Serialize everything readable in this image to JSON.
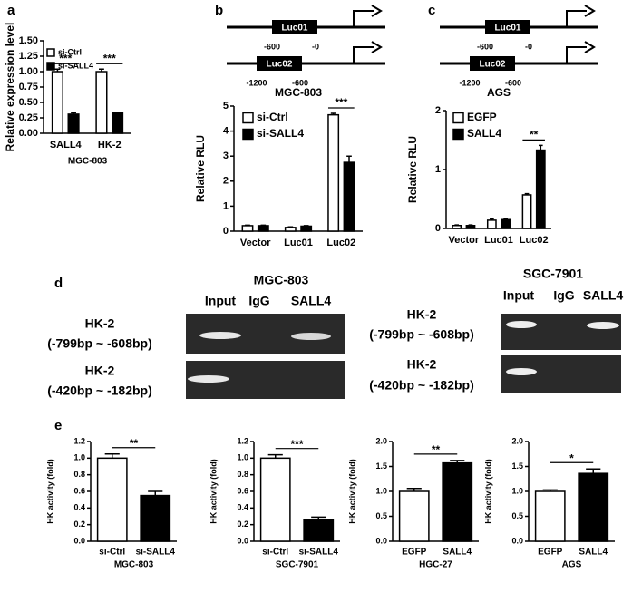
{
  "panel_labels": [
    "a",
    "b",
    "c",
    "d",
    "e"
  ],
  "promoters": [
    {
      "constructs": [
        {
          "label": "Luc01",
          "start": "-600",
          "end": "-0"
        },
        {
          "label": "Luc02",
          "start": "-1200",
          "end": "-600"
        }
      ]
    },
    {
      "constructs": [
        {
          "label": "Luc01",
          "start": "-600",
          "end": "-0"
        },
        {
          "label": "Luc02",
          "start": "-1200",
          "end": "-600"
        }
      ]
    }
  ],
  "gels": [
    {
      "title": "MGC-803",
      "lanes": [
        "Input",
        "IgG",
        "SALL4"
      ],
      "rows": [
        [
          "HK-2",
          "(-799bp ~ -608bp)"
        ],
        [
          "HK-2",
          "(-420bp ~ -182bp)"
        ]
      ]
    },
    {
      "title": "SGC-7901",
      "lanes": [
        "Input",
        "IgG",
        "SALL4"
      ],
      "rows": [
        [
          "HK-2",
          "(-799bp ~ -608bp)"
        ],
        [
          "HK-2",
          "(-420bp ~ -182bp)"
        ]
      ]
    }
  ],
  "chart_data": [
    {
      "type": "bar",
      "ylabel": "Relative expression level",
      "xlabel": "MGC-803",
      "categories": [
        "SALL4",
        "HK-2"
      ],
      "series": [
        {
          "name": "si-Ctrl",
          "color": "#ffffff",
          "values": [
            1.0,
            1.0
          ],
          "errors": [
            0.04,
            0.04
          ]
        },
        {
          "name": "si-SALL4",
          "color": "#000000",
          "values": [
            0.31,
            0.33
          ],
          "errors": [
            0.02,
            0.01
          ]
        }
      ],
      "ylim": [
        0,
        1.5
      ],
      "yticks": [
        {
          "value": 0,
          "label": "0.00"
        },
        0.25,
        {
          "value": 0.5,
          "label": "0.50"
        },
        0.75,
        {
          "value": 1,
          "label": "1.00"
        },
        1.25,
        {
          "value": 1.5,
          "label": "1.50"
        }
      ],
      "annotations": [
        {
          "text": "***",
          "category": 0
        },
        {
          "text": "***",
          "category": 1
        }
      ]
    },
    {
      "type": "bar",
      "title": "MGC-803",
      "ylabel": "Relative RLU",
      "categories": [
        "Vector",
        "Luc01",
        "Luc02"
      ],
      "series": [
        {
          "name": "si-Ctrl",
          "color": "#ffffff",
          "values": [
            0.22,
            0.15,
            4.65
          ],
          "errors": [
            0.02,
            0.02,
            0.06
          ]
        },
        {
          "name": "si-SALL4",
          "color": "#000000",
          "values": [
            0.22,
            0.2,
            2.75
          ],
          "errors": [
            0.02,
            0.02,
            0.25
          ]
        }
      ],
      "ylim": [
        0,
        5
      ],
      "yticks": [
        0,
        1,
        2,
        3,
        4,
        5
      ],
      "annotations": [
        {
          "text": "***",
          "category": 2
        }
      ]
    },
    {
      "type": "bar",
      "title": "AGS",
      "ylabel": "Relative RLU",
      "categories": [
        "Vector",
        "Luc01",
        "Luc02"
      ],
      "series": [
        {
          "name": "EGFP",
          "color": "#ffffff",
          "values": [
            0.05,
            0.14,
            0.57
          ],
          "errors": [
            0.01,
            0.02,
            0.02
          ]
        },
        {
          "name": "SALL4",
          "color": "#000000",
          "values": [
            0.05,
            0.15,
            1.33
          ],
          "errors": [
            0.01,
            0.02,
            0.08
          ]
        }
      ],
      "ylim": [
        0,
        2
      ],
      "yticks": [
        0,
        1,
        2
      ],
      "annotations": [
        {
          "text": "**",
          "category": 2
        }
      ]
    },
    {
      "type": "bar",
      "ylabel": "HK activity (fold)",
      "xlabel": "MGC-803",
      "categories": [
        "si-Ctrl",
        "si-SALL4"
      ],
      "values": [
        1.0,
        0.55
      ],
      "errors": [
        0.05,
        0.05
      ],
      "colors": [
        "#ffffff",
        "#000000"
      ],
      "ylim": [
        0,
        1.2
      ],
      "yticks": [
        {
          "value": 0,
          "label": "0.0"
        },
        0.2,
        0.4,
        0.6,
        0.8,
        {
          "value": 1,
          "label": "1.0"
        },
        1.2
      ],
      "annotation": "**"
    },
    {
      "type": "bar",
      "ylabel": "HK activity (fold)",
      "xlabel": "SGC-7901",
      "categories": [
        "si-Ctrl",
        "si-SALL4"
      ],
      "values": [
        1.0,
        0.26
      ],
      "errors": [
        0.04,
        0.03
      ],
      "colors": [
        "#ffffff",
        "#000000"
      ],
      "ylim": [
        0,
        1.2
      ],
      "yticks": [
        {
          "value": 0,
          "label": "0.0"
        },
        0.2,
        0.4,
        0.6,
        0.8,
        {
          "value": 1,
          "label": "1.0"
        },
        1.2
      ],
      "annotation": "***"
    },
    {
      "type": "bar",
      "ylabel": "HK activity (fold)",
      "xlabel": "HGC-27",
      "categories": [
        "EGFP",
        "SALL4"
      ],
      "values": [
        1.0,
        1.57
      ],
      "errors": [
        0.06,
        0.05
      ],
      "colors": [
        "#ffffff",
        "#000000"
      ],
      "ylim": [
        0,
        2
      ],
      "yticks": [
        {
          "value": 0,
          "label": "0.0"
        },
        0.5,
        {
          "value": 1,
          "label": "1.0"
        },
        1.5,
        {
          "value": 2,
          "label": "2.0"
        }
      ],
      "annotation": "**"
    },
    {
      "type": "bar",
      "ylabel": "HK activity (fold)",
      "xlabel": "AGS",
      "categories": [
        "EGFP",
        "SALL4"
      ],
      "values": [
        1.0,
        1.36
      ],
      "errors": [
        0.03,
        0.09
      ],
      "colors": [
        "#ffffff",
        "#000000"
      ],
      "ylim": [
        0,
        2
      ],
      "yticks": [
        {
          "value": 0,
          "label": "0.0"
        },
        0.5,
        {
          "value": 1,
          "label": "1.0"
        },
        1.5,
        {
          "value": 2,
          "label": "2.0"
        }
      ],
      "annotation": "*"
    }
  ]
}
